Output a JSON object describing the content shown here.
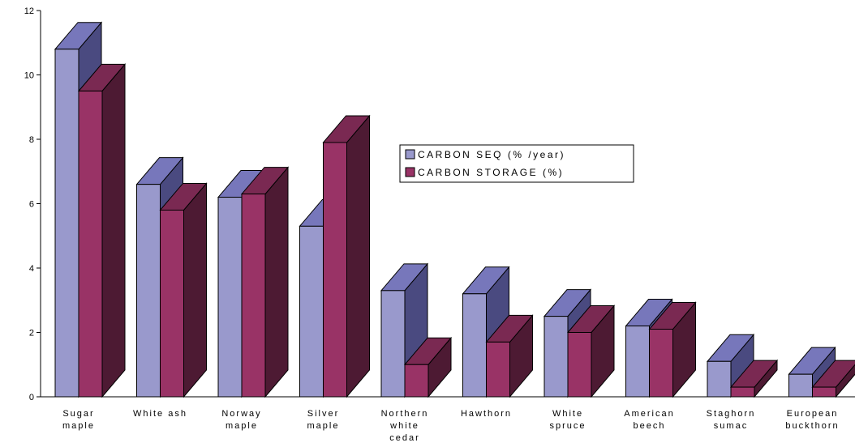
{
  "chart_data": {
    "type": "bar",
    "categories": [
      "Sugar maple",
      "White ash",
      "Norway maple",
      "Silver maple",
      "Northern white cedar",
      "Hawthorn",
      "White spruce",
      "American beech",
      "Staghorn sumac",
      "European buckthorn"
    ],
    "category_label_lines": [
      [
        "Sugar",
        "maple"
      ],
      [
        "White ash"
      ],
      [
        "Norway",
        "maple"
      ],
      [
        "Silver",
        "maple"
      ],
      [
        "Northern",
        "white",
        "cedar"
      ],
      [
        "Hawthorn"
      ],
      [
        "White",
        "spruce"
      ],
      [
        "American",
        "beech"
      ],
      [
        "Staghorn",
        "sumac"
      ],
      [
        "European",
        "buckthorn"
      ]
    ],
    "series": [
      {
        "name": "CARBON SEQ (% /year)",
        "color": "#9999cc",
        "side_color": "#4a4a80",
        "top_color": "#7777bb",
        "values": [
          10.8,
          6.6,
          6.2,
          5.3,
          3.3,
          3.2,
          2.5,
          2.2,
          1.1,
          0.7
        ]
      },
      {
        "name": "CARBON STORAGE (%)",
        "color": "#993366",
        "side_color": "#4d1a33",
        "top_color": "#7a2952",
        "values": [
          9.5,
          5.8,
          6.3,
          7.9,
          1.0,
          1.7,
          2.0,
          2.1,
          0.3,
          0.3
        ]
      }
    ],
    "ylim": [
      0,
      12
    ],
    "yticks": [
      "0",
      "2",
      "4",
      "6",
      "8",
      "10",
      "12"
    ],
    "legend_position": "center-right",
    "grid": false,
    "title": "",
    "xlabel": "",
    "ylabel": ""
  }
}
